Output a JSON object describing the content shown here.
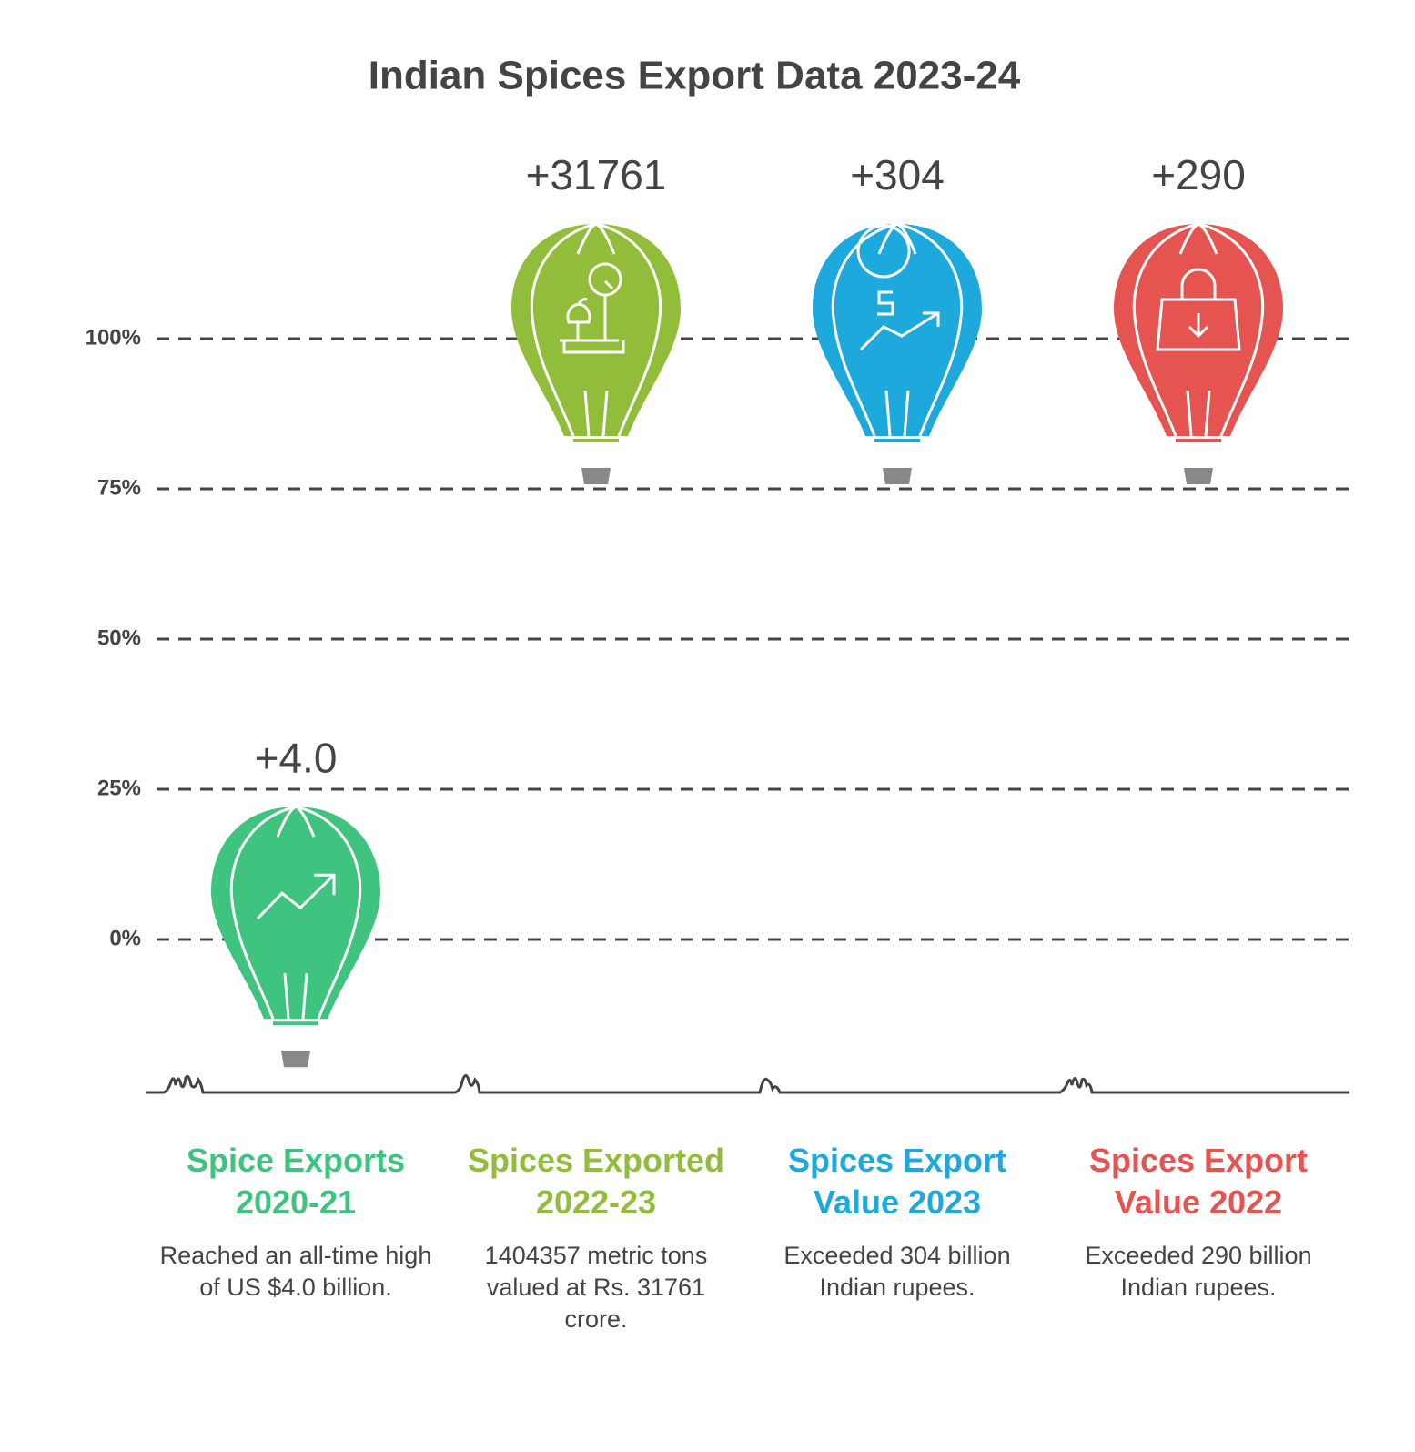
{
  "chart_data": {
    "type": "balloon",
    "title": "Indian Spices Export Data 2023-24",
    "categories": [
      "Spice Exports 2020-21",
      "Spices Exported 2022-23",
      "Spices Export Value 2023",
      "Spices Export Value 2022"
    ],
    "descriptions": [
      "Reached an all-time high of US $4.0 billion.",
      "1404357 metric tons valued at Rs. 31761 crore.",
      "Exceeded 304 billion Indian rupees.",
      "Exceeded 290 billion Indian rupees."
    ],
    "annotations": [
      "+4.0",
      "+31761",
      "+304",
      "+290"
    ],
    "values": [
      8,
      105,
      105,
      105
    ],
    "colors": [
      "#3ec47e",
      "#92bd3a",
      "#1ea9dc",
      "#e55451"
    ],
    "ylim": [
      -25,
      125
    ],
    "yticks": [
      {
        "value": 0,
        "label": "0%"
      },
      {
        "value": 25,
        "label": "25%"
      },
      {
        "value": 50,
        "label": "50%"
      },
      {
        "value": 75,
        "label": "75%"
      },
      {
        "value": 100,
        "label": "100%"
      }
    ],
    "grid": true
  }
}
